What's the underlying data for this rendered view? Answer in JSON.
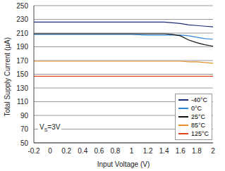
{
  "chart_data": {
    "type": "line",
    "x_label": "Input Voltage (V)",
    "y_label": "Total Supply Current (µA)",
    "annotation": "VS=3V",
    "x": [
      -0.2,
      1.0,
      1.2,
      1.4,
      1.5,
      1.6,
      1.7,
      1.8,
      1.9,
      2.0
    ],
    "series": [
      {
        "name": "-40°C",
        "color": "#1c2a7a",
        "values": [
          226,
          226,
          226,
          226,
          225,
          224,
          222,
          221,
          220,
          219
        ]
      },
      {
        "name": "0°C",
        "color": "#2f86d6",
        "values": [
          208,
          208,
          207,
          207,
          207,
          207,
          206,
          204,
          202,
          201
        ]
      },
      {
        "name": "25°C",
        "color": "#111111",
        "values": [
          209,
          209,
          209,
          209,
          208,
          206,
          200,
          196,
          193,
          191
        ]
      },
      {
        "name": "85°C",
        "color": "#e8902c",
        "values": [
          169,
          169,
          169,
          169,
          169,
          169,
          168,
          168,
          167,
          166
        ]
      },
      {
        "name": "125°C",
        "color": "#d8431c",
        "values": [
          147,
          147,
          147,
          147,
          147,
          147,
          147,
          147,
          147,
          147
        ]
      }
    ],
    "xlim": [
      -0.2,
      2
    ],
    "xticks": [
      -0.2,
      0,
      0.2,
      0.4,
      0.6,
      0.8,
      1,
      1.2,
      1.4,
      1.6,
      1.8,
      2
    ],
    "ylim": [
      50,
      250
    ],
    "yticks": [
      50,
      70,
      90,
      110,
      130,
      150,
      170,
      190,
      210,
      230,
      250
    ],
    "grid": true,
    "legend": "lower right"
  }
}
